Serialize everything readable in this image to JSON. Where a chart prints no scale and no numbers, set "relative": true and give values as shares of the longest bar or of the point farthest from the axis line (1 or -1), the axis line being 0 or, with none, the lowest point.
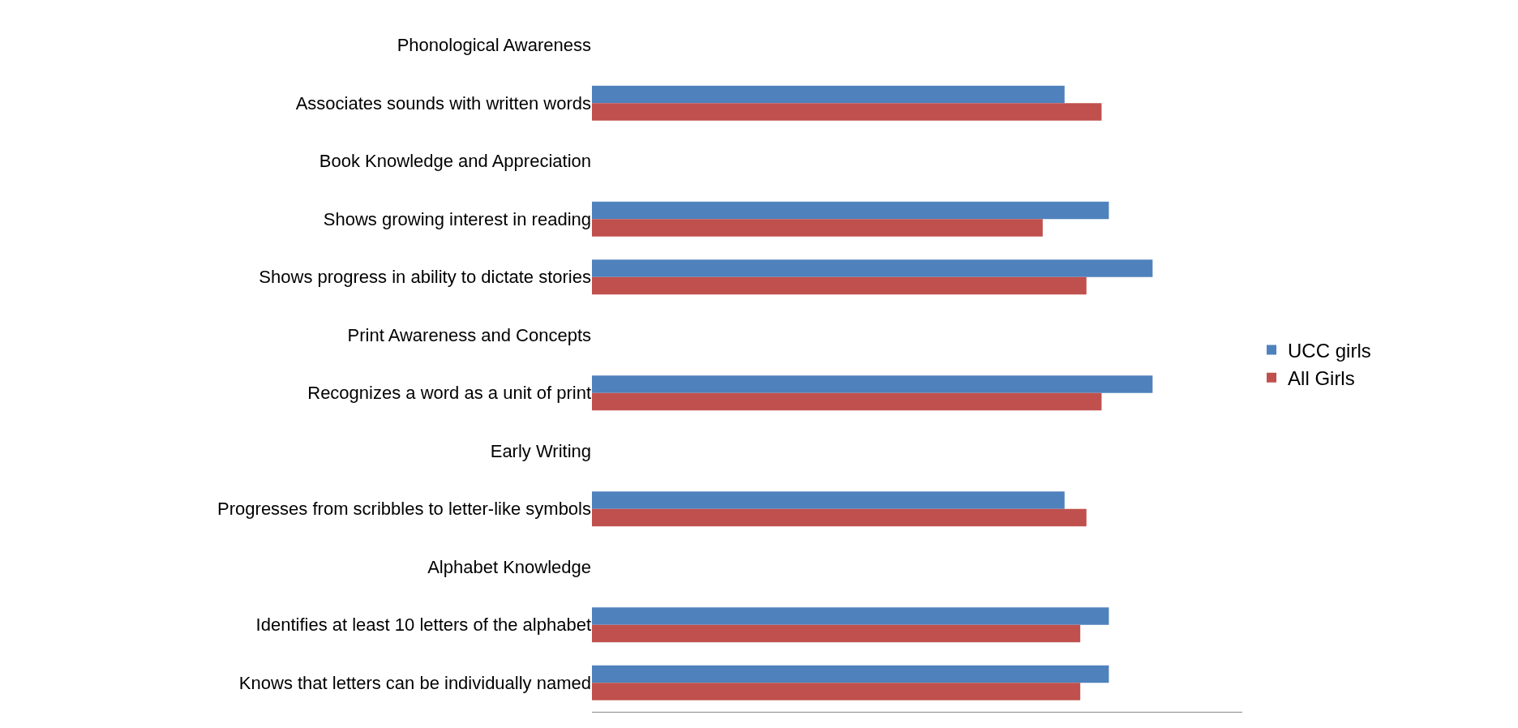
{
  "chart_data": {
    "type": "bar",
    "orientation": "horizontal",
    "relative": true,
    "legend": "right",
    "categories": [
      "Phonological Awareness",
      "Associates sounds with written words",
      "Book Knowledge and Appreciation",
      "Shows growing interest in reading",
      "Shows progress in ability to dictate stories",
      "Print Awareness and Concepts",
      "Recognizes a word as a unit of print",
      "Early Writing",
      "Progresses from scribbles to letter-like symbols",
      "Alphabet Knowledge",
      "Identifies at least 10 letters of the alphabet",
      "Knows that letters can be individually named"
    ],
    "series": [
      {
        "name": "UCC girls",
        "color": "#4f81bd",
        "values": [
          null,
          0.843,
          null,
          0.922,
          1,
          null,
          1,
          null,
          0.843,
          null,
          0.922,
          0.922
        ]
      },
      {
        "name": "All Girls",
        "color": "#c0504d",
        "values": [
          null,
          0.909,
          null,
          0.804,
          0.882,
          null,
          0.909,
          null,
          0.882,
          null,
          0.871,
          0.871
        ]
      }
    ]
  }
}
